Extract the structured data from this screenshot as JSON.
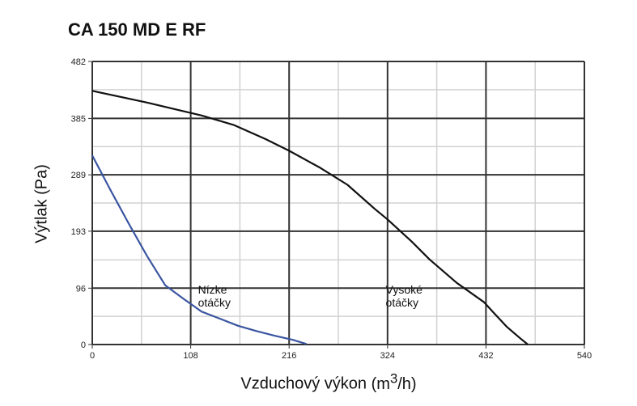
{
  "chart_data": {
    "type": "line",
    "title": "CA 150 MD E RF",
    "xlabel": "Vzduchový výkon",
    "xlabel_unit": "(m3/h)",
    "ylabel": "Výtlak (Pa)",
    "xlim": [
      0,
      540
    ],
    "ylim": [
      0,
      482
    ],
    "x_ticks": [
      0,
      108,
      216,
      324,
      432,
      540
    ],
    "y_ticks": [
      0,
      96,
      193,
      289,
      385,
      482
    ],
    "x_minor_ticks": [
      54,
      162,
      270,
      378,
      486
    ],
    "y_minor_ticks": [
      48,
      144,
      241,
      337,
      434
    ],
    "grid": true,
    "series": [
      {
        "name": "Nízke otáčky",
        "label_lines": [
          "Nízke",
          "otáčky"
        ],
        "color": "#3a55a0",
        "points": [
          [
            0,
            322
          ],
          [
            20,
            263
          ],
          [
            40,
            206
          ],
          [
            60,
            151
          ],
          [
            80,
            101
          ],
          [
            100,
            78
          ],
          [
            120,
            56
          ],
          [
            140,
            44
          ],
          [
            160,
            32
          ],
          [
            180,
            23
          ],
          [
            200,
            15
          ],
          [
            220,
            8
          ],
          [
            235,
            1
          ]
        ]
      },
      {
        "name": "Vysoké otáčky",
        "label_lines": [
          "Vysoké",
          "otáčky"
        ],
        "color": "#111111",
        "points": [
          [
            0,
            432
          ],
          [
            30,
            422
          ],
          [
            60,
            412
          ],
          [
            90,
            401
          ],
          [
            120,
            390
          ],
          [
            155,
            374
          ],
          [
            190,
            350
          ],
          [
            216,
            330
          ],
          [
            250,
            301
          ],
          [
            280,
            272
          ],
          [
            310,
            231
          ],
          [
            324,
            213
          ],
          [
            350,
            176
          ],
          [
            370,
            145
          ],
          [
            400,
            105
          ],
          [
            430,
            72
          ],
          [
            440,
            55
          ],
          [
            455,
            30
          ],
          [
            470,
            10
          ],
          [
            478,
            0
          ]
        ]
      }
    ]
  }
}
